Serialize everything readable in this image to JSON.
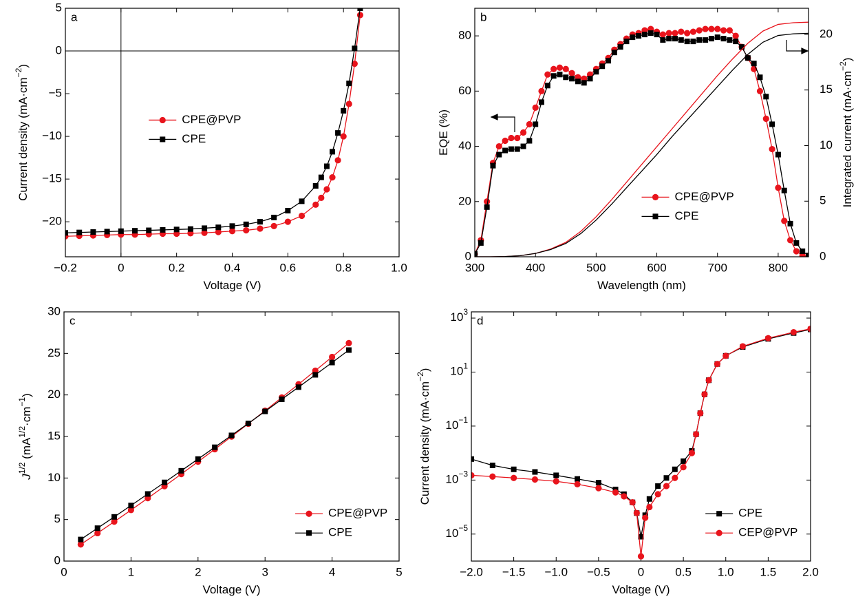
{
  "chart_data": [
    {
      "type": "line",
      "panel_label": "a",
      "x_label": [
        {
          "text": "Voltage (V)"
        }
      ],
      "y_label": [
        {
          "text": "Current density (mA·cm"
        },
        {
          "sup": "−2"
        },
        {
          "text": ")"
        }
      ],
      "xlim": [
        -0.2,
        1.0
      ],
      "ylim": [
        -24.1,
        5
      ],
      "xticks": [
        {
          "value": -0.2,
          "label": "−0.2"
        },
        0,
        0.2,
        0.4,
        0.6,
        0.8,
        {
          "value": 1.0,
          "label": "1.0"
        }
      ],
      "yticks": [
        5,
        0,
        {
          "value": -5,
          "label": "−5"
        },
        {
          "value": -10,
          "label": "−10"
        },
        {
          "value": -15,
          "label": "−15"
        },
        {
          "value": -20,
          "label": "−20"
        }
      ],
      "zero_lines": true,
      "legend": "center-left",
      "x": [
        -0.2,
        -0.15,
        -0.1,
        -0.05,
        0,
        0.05,
        0.1,
        0.15,
        0.2,
        0.25,
        0.3,
        0.35,
        0.4,
        0.45,
        0.5,
        0.55,
        0.6,
        0.65,
        0.7,
        0.72,
        0.74,
        0.76,
        0.78,
        0.8,
        0.82,
        0.84,
        0.86
      ],
      "series": [
        {
          "name": "CPE@PVP",
          "color": "#e8141c",
          "marker": "circle",
          "values": [
            -21.7,
            -21.65,
            -21.6,
            -21.55,
            -21.5,
            -21.5,
            -21.45,
            -21.4,
            -21.4,
            -21.35,
            -21.3,
            -21.2,
            -21.1,
            -21.0,
            -20.8,
            -20.5,
            -20.0,
            -19.3,
            -18.0,
            -17.2,
            -16.2,
            -14.8,
            -12.8,
            -10.0,
            -6.2,
            -1.5,
            4.2
          ]
        },
        {
          "name": "CPE",
          "color": "#000000",
          "marker": "square",
          "values": [
            -21.3,
            -21.25,
            -21.2,
            -21.15,
            -21.1,
            -21.05,
            -21.0,
            -20.95,
            -20.9,
            -20.85,
            -20.75,
            -20.65,
            -20.5,
            -20.3,
            -20.0,
            -19.5,
            -18.7,
            -17.6,
            -15.8,
            -14.8,
            -13.5,
            -11.8,
            -9.6,
            -7.0,
            -3.8,
            0.3,
            5.0
          ]
        }
      ]
    },
    {
      "type": "line",
      "panel_label": "b",
      "x_label": [
        {
          "text": "Wavelength (nm)"
        }
      ],
      "y_label": [
        {
          "text": "EQE (%)"
        }
      ],
      "y2_label": [
        {
          "text": "Integrated current (mA·cm"
        },
        {
          "sup": "−2"
        },
        {
          "text": ")"
        }
      ],
      "xlim": [
        300,
        850
      ],
      "ylim": [
        0,
        90
      ],
      "y2lim": [
        0,
        22.35
      ],
      "xticks": [
        300,
        400,
        500,
        600,
        700,
        800
      ],
      "yticks": [
        0,
        20,
        40,
        60,
        80
      ],
      "y2ticks": [
        0,
        5,
        10,
        15,
        20
      ],
      "legend": "lower-center",
      "x": [
        300,
        310,
        320,
        330,
        340,
        350,
        360,
        370,
        380,
        390,
        400,
        410,
        420,
        430,
        440,
        450,
        460,
        470,
        480,
        490,
        500,
        510,
        520,
        530,
        540,
        550,
        560,
        570,
        580,
        590,
        600,
        610,
        620,
        630,
        640,
        650,
        660,
        670,
        680,
        690,
        700,
        710,
        720,
        730,
        740,
        750,
        760,
        770,
        780,
        790,
        800,
        810,
        820,
        830,
        840,
        850
      ],
      "series": [
        {
          "name": "CPE@PVP",
          "color": "#e8141c",
          "marker": "circle",
          "values": [
            1,
            6,
            20,
            34,
            40,
            42,
            43,
            43,
            45,
            48,
            54,
            60,
            66,
            68,
            68.5,
            68,
            66.5,
            65,
            64.5,
            66,
            68,
            70,
            72,
            75,
            77,
            79,
            80.5,
            81,
            82,
            82.5,
            81.5,
            80.5,
            81,
            81,
            81.5,
            81,
            81.5,
            82,
            82.5,
            82.5,
            82.5,
            82,
            82,
            80,
            76,
            72,
            68,
            60,
            50,
            39,
            25,
            13,
            6,
            2,
            0.5,
            0
          ]
        },
        {
          "name": "CPE",
          "color": "#000000",
          "marker": "square",
          "values": [
            1,
            5,
            18,
            33,
            37,
            38.5,
            39,
            39,
            40,
            42,
            48,
            56,
            62,
            65.5,
            66,
            65,
            64.5,
            63.5,
            63,
            64.5,
            67,
            69,
            71,
            74,
            76,
            78,
            79.5,
            80,
            80.5,
            81,
            80.5,
            78.5,
            79,
            79,
            78.5,
            78,
            78,
            78.5,
            78.5,
            79,
            79.5,
            79,
            78.5,
            78,
            76,
            72,
            70,
            65,
            58,
            48,
            37,
            24,
            12,
            5,
            2,
            0.5
          ]
        },
        {
          "color": "#e8141c",
          "axis": "y2",
          "x": [
            300,
            325,
            350,
            375,
            400,
            425,
            450,
            475,
            500,
            525,
            550,
            575,
            600,
            625,
            650,
            675,
            700,
            725,
            750,
            775,
            800,
            825,
            850
          ],
          "values": [
            0,
            0,
            0.02,
            0.1,
            0.3,
            0.7,
            1.3,
            2.3,
            3.6,
            5.1,
            6.7,
            8.3,
            9.9,
            11.5,
            13.1,
            14.7,
            16.3,
            17.8,
            19.2,
            20.3,
            20.9,
            21.05,
            21.1
          ]
        },
        {
          "color": "#000000",
          "axis": "y2",
          "x": [
            300,
            325,
            350,
            375,
            400,
            425,
            450,
            475,
            500,
            525,
            550,
            575,
            600,
            625,
            650,
            675,
            700,
            725,
            750,
            775,
            800,
            825,
            850
          ],
          "values": [
            0,
            0,
            0.02,
            0.1,
            0.3,
            0.65,
            1.2,
            2.1,
            3.3,
            4.7,
            6.2,
            7.7,
            9.2,
            10.8,
            12.3,
            13.8,
            15.3,
            16.8,
            18.2,
            19.3,
            19.9,
            20.05,
            20.1
          ]
        }
      ]
    },
    {
      "type": "line",
      "panel_label": "c",
      "x_label": [
        {
          "text": "Voltage (V)"
        }
      ],
      "y_label": [
        {
          "text": "J",
          "italic": true
        },
        {
          "sup": "1/2"
        },
        {
          "text": " (mA"
        },
        {
          "sup": "1/2"
        },
        {
          "text": "·cm"
        },
        {
          "sup": "−1"
        },
        {
          "text": ")"
        }
      ],
      "xlim": [
        0,
        5
      ],
      "ylim": [
        0,
        30
      ],
      "xticks": [
        0,
        1,
        2,
        3,
        4,
        5
      ],
      "yticks": [
        0,
        5,
        10,
        15,
        20,
        25,
        30
      ],
      "legend": "lower-right",
      "x": [
        0.25,
        0.5,
        0.75,
        1,
        1.25,
        1.5,
        1.75,
        2,
        2.25,
        2.5,
        2.75,
        3,
        3.25,
        3.5,
        3.75,
        4,
        4.25
      ],
      "series": [
        {
          "name": "CPE@PVP",
          "color": "#e8141c",
          "marker": "circle",
          "values": [
            2.0,
            3.36,
            4.74,
            6.14,
            7.57,
            9.01,
            10.47,
            11.96,
            13.46,
            14.99,
            16.53,
            18.1,
            19.69,
            21.29,
            22.92,
            24.57,
            26.24
          ]
        },
        {
          "name": "CPE",
          "color": "#000000",
          "marker": "square",
          "values": [
            2.6,
            3.96,
            5.32,
            6.69,
            8.08,
            9.47,
            10.87,
            12.28,
            13.7,
            15.13,
            16.57,
            18.02,
            19.48,
            20.94,
            22.42,
            23.9,
            25.4
          ]
        }
      ]
    },
    {
      "type": "line",
      "panel_label": "d",
      "x_label": [
        {
          "text": "Voltage (V)"
        }
      ],
      "y_label": [
        {
          "text": "Current density (mA·cm"
        },
        {
          "sup": "−2"
        },
        {
          "text": ")"
        }
      ],
      "log_y": true,
      "xlim": [
        -2,
        2
      ],
      "ylim": [
        1e-06,
        1700
      ],
      "xticks": [
        {
          "value": -2,
          "label": "−2.0"
        },
        {
          "value": -1.5,
          "label": "−1.5"
        },
        {
          "value": -1,
          "label": "−1.0"
        },
        {
          "value": -0.5,
          "label": "−0.5"
        },
        0,
        0.5,
        {
          "value": 1,
          "label": "1.0"
        },
        1.5,
        {
          "value": 2,
          "label": "2.0"
        }
      ],
      "yticks": [
        {
          "value": 1000,
          "label": {
            "base": "10",
            "exp": "3"
          }
        },
        {
          "value": 10,
          "label": {
            "base": "10",
            "exp": "1"
          }
        },
        {
          "value": 0.1,
          "label": {
            "base": "10",
            "exp": "−1"
          }
        },
        {
          "value": 0.001,
          "label": {
            "base": "10",
            "exp": "−3"
          }
        },
        {
          "value": 1e-05,
          "label": {
            "base": "10",
            "exp": "−5"
          }
        }
      ],
      "legend": "lower-right",
      "x": [
        -2,
        -1.75,
        -1.5,
        -1.25,
        -1,
        -0.75,
        -0.5,
        -0.3,
        -0.2,
        -0.1,
        -0.05,
        0,
        0.05,
        0.1,
        0.2,
        0.3,
        0.4,
        0.5,
        0.6,
        0.65,
        0.7,
        0.75,
        0.8,
        0.9,
        1.0,
        1.2,
        1.5,
        1.8,
        2.0
      ],
      "series": [
        {
          "name": "CPE",
          "color": "#000000",
          "marker": "square",
          "values": [
            0.006,
            0.0035,
            0.0025,
            0.002,
            0.0015,
            0.0011,
            0.0008,
            0.00045,
            0.0003,
            0.00015,
            6e-05,
            8e-06,
            5e-05,
            0.0002,
            0.0006,
            0.0012,
            0.0025,
            0.005,
            0.012,
            0.05,
            0.3,
            1.5,
            5,
            20,
            40,
            85,
            170,
            280,
            380
          ]
        },
        {
          "name": "CEP@PVP",
          "color": "#e8141c",
          "marker": "circle",
          "values": [
            0.0015,
            0.00135,
            0.0012,
            0.00105,
            0.0009,
            0.0007,
            0.0005,
            0.00035,
            0.00025,
            0.00015,
            6e-05,
            1.5e-06,
            4e-05,
            0.0001,
            0.0003,
            0.0006,
            0.0012,
            0.003,
            0.01,
            0.05,
            0.3,
            1.5,
            5,
            20,
            40,
            90,
            180,
            300,
            400
          ]
        }
      ]
    }
  ]
}
